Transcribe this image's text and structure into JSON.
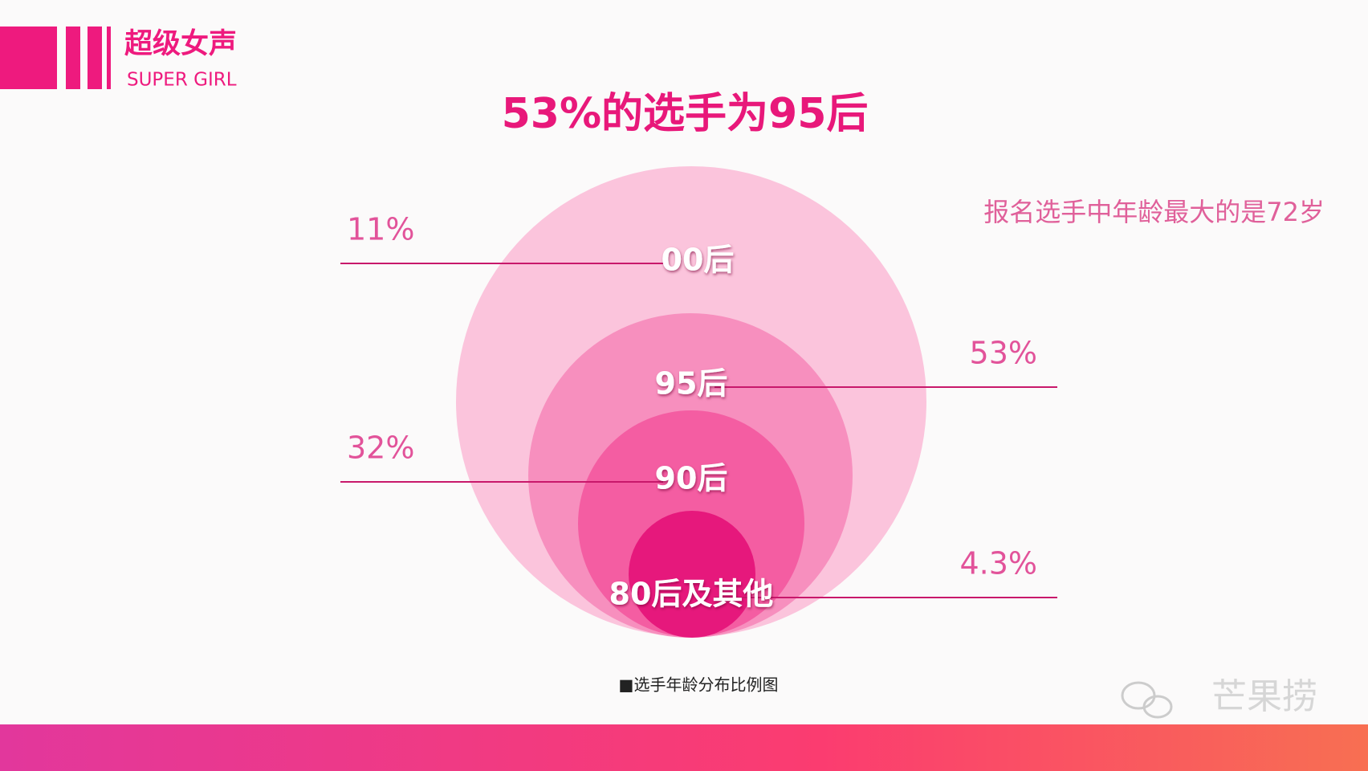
{
  "header": {
    "title": "超级女声",
    "subtitle": "SUPER GIRL"
  },
  "chart_data": {
    "type": "nested-circle",
    "title": "53%的选手为95后",
    "annotation": "报名选手中年龄最大的是72岁",
    "caption": "■选手年龄分布比例图",
    "categories": [
      "00后",
      "95后",
      "90后",
      "80后及其他"
    ],
    "values": [
      11,
      53,
      32,
      4.3
    ],
    "value_labels": [
      "11%",
      "53%",
      "32%",
      "4.3%"
    ],
    "colors": [
      "#fbc4dc",
      "#f78fbe",
      "#f45da2",
      "#e6187c"
    ]
  },
  "watermark": "芒果捞"
}
